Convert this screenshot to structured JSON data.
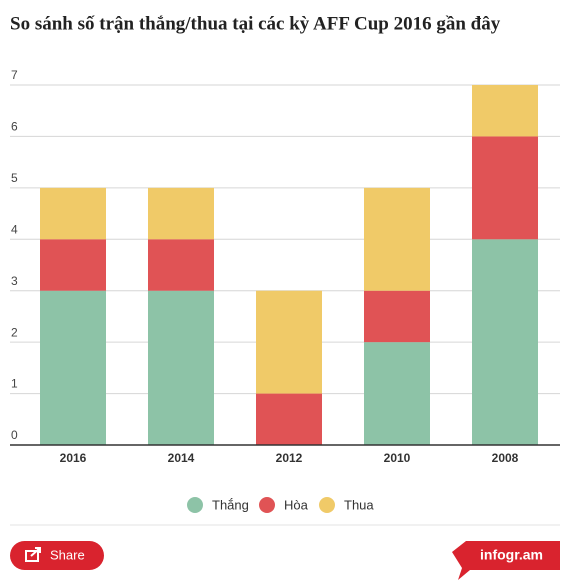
{
  "chart_data": {
    "type": "stacked-bar",
    "title": "So sánh số trận thắng/thua tại các kỳ AFF Cup 2016 gần đây",
    "categories": [
      "2016",
      "2014",
      "2012",
      "2010",
      "2008"
    ],
    "series": [
      {
        "name": "Thắng",
        "color": "#8dc3a7",
        "values": [
          3,
          3,
          0,
          2,
          4
        ]
      },
      {
        "name": "Hòa",
        "color": "#e05355",
        "values": [
          1,
          1,
          1,
          1,
          2
        ]
      },
      {
        "name": "Thua",
        "color": "#f0ca68",
        "values": [
          1,
          1,
          2,
          2,
          1
        ]
      }
    ],
    "ylim": [
      0,
      7
    ],
    "yticks": [
      0,
      1,
      2,
      3,
      4,
      5,
      6,
      7
    ],
    "grid": true,
    "legend": "bottom"
  },
  "footer": {
    "share": "Share",
    "brand": "infogr.am"
  }
}
